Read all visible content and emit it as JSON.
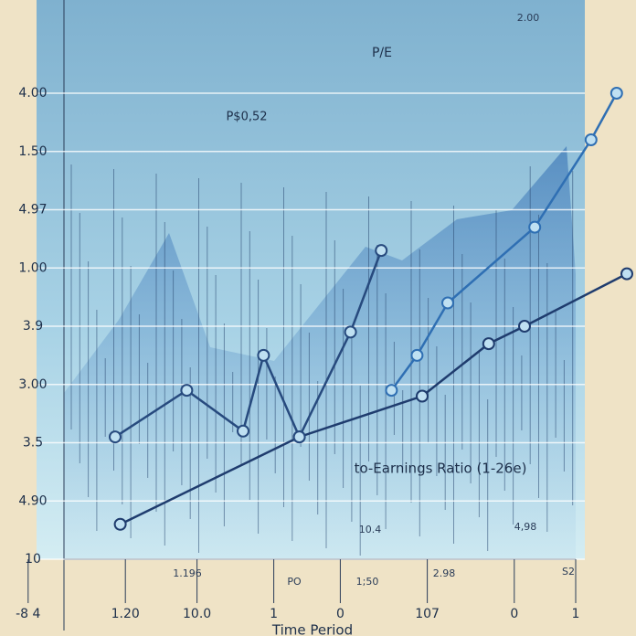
{
  "chart_data": {
    "type": "line",
    "title": "P/E",
    "subtitle": "P$0,52",
    "y_label": "to-Earnings Ratio (1-26e)",
    "x_label": "Time Period",
    "annotations": [
      "1.196",
      "PO",
      "1;50",
      "2.98",
      "10.4",
      "4,98",
      "S2",
      "2.00"
    ],
    "xlim": [
      -1,
      11
    ],
    "xticks": [
      {
        "value": -0.7,
        "label": "-8 4"
      },
      {
        "value": 1.2,
        "label": "1.20"
      },
      {
        "value": 2.6,
        "label": "10.0"
      },
      {
        "value": 4.1,
        "label": "1"
      },
      {
        "value": 5.4,
        "label": "0"
      },
      {
        "value": 7.1,
        "label": "107"
      },
      {
        "value": 8.8,
        "label": "0"
      },
      {
        "value": 10,
        "label": "1"
      }
    ],
    "ylim": [
      0,
      8.8
    ],
    "yticks": [
      {
        "value": 0,
        "label": "10"
      },
      {
        "value": 1,
        "label": "4.90"
      },
      {
        "value": 2,
        "label": "3.5"
      },
      {
        "value": 3,
        "label": "3.00"
      },
      {
        "value": 4,
        "label": "3.9"
      },
      {
        "value": 5,
        "label": "1.00"
      },
      {
        "value": 6,
        "label": "4.97"
      },
      {
        "value": 7,
        "label": "1.50"
      },
      {
        "value": 8,
        "label": "4.00"
      }
    ],
    "grid": true,
    "series": [
      {
        "color": "#1f3c6e",
        "x": [
          1.1,
          4.6,
          7.0,
          8.3,
          9.0,
          11.0
        ],
        "values": [
          0.6,
          2.1,
          2.8,
          3.7,
          4.0,
          4.9
        ]
      },
      {
        "color": "#274a7e",
        "x": [
          1.0,
          2.4,
          3.5,
          3.9,
          4.6,
          5.6,
          6.2
        ],
        "values": [
          2.1,
          2.9,
          2.2,
          3.5,
          2.1,
          3.9,
          5.3
        ]
      },
      {
        "color": "#2f6fb3",
        "x": [
          6.4,
          6.9,
          7.5,
          9.2,
          10.3,
          10.8
        ],
        "values": [
          2.9,
          3.5,
          4.4,
          5.7,
          7.2,
          8.0
        ]
      }
    ]
  }
}
